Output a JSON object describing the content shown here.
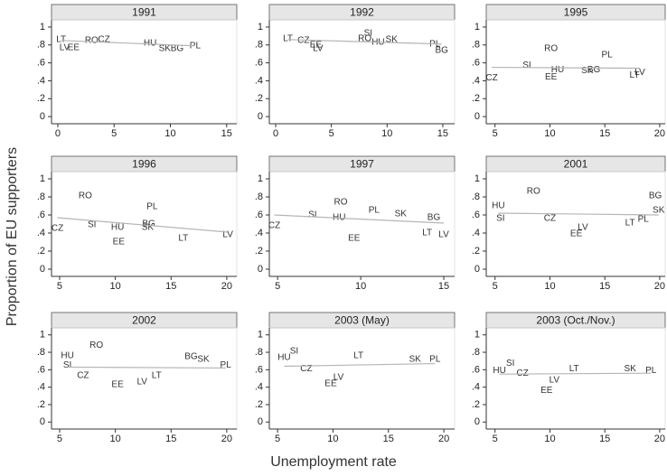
{
  "y_label": "Proportion of EU supporters",
  "x_label": "Unemployment rate",
  "chart_data": [
    {
      "type": "scatter",
      "title": "1991",
      "xlim": [
        -0.56,
        15.9
      ],
      "xticks": [
        0,
        5,
        10,
        15
      ],
      "ylim": [
        -0.08,
        1.08
      ],
      "yticks": [
        0,
        {
          "value": 0.2,
          "label": ".2"
        },
        {
          "value": 0.4,
          "label": ".4"
        },
        {
          "value": 0.6,
          "label": ".6"
        },
        {
          "value": 0.8,
          "label": ".8"
        },
        1
      ],
      "labels": [
        "LT",
        "LV",
        "EE",
        "RO",
        "CZ",
        "HU",
        "SK",
        "BG",
        "PL"
      ],
      "x": [
        0.3,
        0.6,
        1.4,
        3.0,
        4.1,
        8.2,
        9.5,
        10.6,
        12.2
      ],
      "values": [
        0.86,
        0.77,
        0.77,
        0.85,
        0.86,
        0.82,
        0.76,
        0.76,
        0.79
      ],
      "fit": {
        "x": [
          0.3,
          12.2
        ],
        "values": [
          0.85,
          0.79
        ]
      }
    },
    {
      "type": "scatter",
      "title": "1992",
      "xlim": [
        -0.57,
        16.06
      ],
      "xticks": [
        0,
        5,
        10,
        15
      ],
      "ylim": [
        -0.08,
        1.08
      ],
      "yticks": [
        0,
        {
          "value": 0.2,
          "label": ".2"
        },
        {
          "value": 0.4,
          "label": ".4"
        },
        {
          "value": 0.6,
          "label": ".6"
        },
        {
          "value": 0.8,
          "label": ".8"
        },
        1
      ],
      "labels": [
        "LT",
        "CZ",
        "EE",
        "LV",
        "SI",
        "RO",
        "HU",
        "SK",
        "PL",
        "BG"
      ],
      "x": [
        1.1,
        2.5,
        3.6,
        3.8,
        8.3,
        8.0,
        9.2,
        10.4,
        14.3,
        14.9
      ],
      "values": [
        0.87,
        0.85,
        0.8,
        0.76,
        0.93,
        0.87,
        0.83,
        0.86,
        0.81,
        0.74
      ],
      "fit": {
        "x": [
          1.1,
          14.9
        ],
        "values": [
          0.86,
          0.81
        ]
      }
    },
    {
      "type": "scatter",
      "title": "1995",
      "xlim": [
        4.2,
        20.5
      ],
      "xticks": [
        5,
        10,
        15,
        20
      ],
      "ylim": [
        -0.08,
        1.08
      ],
      "yticks": [
        0,
        {
          "value": 0.2,
          "label": ".2"
        },
        {
          "value": 0.4,
          "label": ".4"
        },
        {
          "value": 0.6,
          "label": ".6"
        },
        {
          "value": 0.8,
          "label": ".8"
        },
        1
      ],
      "labels": [
        "CZ",
        "SI",
        "RO",
        "HU",
        "EE",
        "SK",
        "BG",
        "PL",
        "LT",
        "LV"
      ],
      "x": [
        4.7,
        7.9,
        10.1,
        10.7,
        10.1,
        13.4,
        14.0,
        15.2,
        17.7,
        18.2
      ],
      "values": [
        0.43,
        0.57,
        0.76,
        0.52,
        0.44,
        0.51,
        0.52,
        0.69,
        0.46,
        0.49
      ],
      "fit": {
        "x": [
          4.7,
          18.2
        ],
        "values": [
          0.55,
          0.54
        ]
      }
    },
    {
      "type": "scatter",
      "title": "1996",
      "xlim": [
        4.27,
        20.9
      ],
      "xticks": [
        5,
        10,
        15,
        20
      ],
      "ylim": [
        -0.08,
        1.08
      ],
      "yticks": [
        0,
        {
          "value": 0.2,
          "label": ".2"
        },
        {
          "value": 0.4,
          "label": ".4"
        },
        {
          "value": 0.6,
          "label": ".6"
        },
        {
          "value": 0.8,
          "label": ".8"
        },
        1
      ],
      "labels": [
        "CZ",
        "RO",
        "SI",
        "HU",
        "EE",
        "PL",
        "BG",
        "SK",
        "LT",
        "LV"
      ],
      "x": [
        4.8,
        7.3,
        7.9,
        10.2,
        10.3,
        13.3,
        13.0,
        12.9,
        16.1,
        20.1
      ],
      "values": [
        0.45,
        0.81,
        0.49,
        0.46,
        0.3,
        0.69,
        0.5,
        0.46,
        0.34,
        0.38
      ],
      "fit": {
        "x": [
          4.8,
          20.1
        ],
        "values": [
          0.57,
          0.41
        ]
      }
    },
    {
      "type": "scatter",
      "title": "1997",
      "xlim": [
        4.5,
        15.65
      ],
      "xticks": [
        5,
        10,
        15
      ],
      "ylim": [
        -0.08,
        1.08
      ],
      "yticks": [
        0,
        {
          "value": 0.2,
          "label": ".2"
        },
        {
          "value": 0.4,
          "label": ".4"
        },
        {
          "value": 0.6,
          "label": ".6"
        },
        {
          "value": 0.8,
          "label": ".8"
        },
        1
      ],
      "labels": [
        "CZ",
        "SI",
        "RO",
        "HU",
        "EE",
        "PL",
        "SK",
        "BG",
        "LT",
        "LV"
      ],
      "x": [
        4.8,
        7.1,
        8.8,
        8.7,
        9.6,
        10.8,
        12.4,
        14.4,
        14.0,
        15.0
      ],
      "values": [
        0.48,
        0.6,
        0.74,
        0.57,
        0.34,
        0.65,
        0.61,
        0.57,
        0.4,
        0.38
      ],
      "fit": {
        "x": [
          4.8,
          15.0
        ],
        "values": [
          0.6,
          0.51
        ]
      }
    },
    {
      "type": "scatter",
      "title": "2001",
      "xlim": [
        4.2,
        20.5
      ],
      "xticks": [
        5,
        10,
        15,
        20
      ],
      "ylim": [
        -0.08,
        1.08
      ],
      "yticks": [
        0,
        {
          "value": 0.2,
          "label": ".2"
        },
        {
          "value": 0.4,
          "label": ".4"
        },
        {
          "value": 0.6,
          "label": ".6"
        },
        {
          "value": 0.8,
          "label": ".8"
        },
        1
      ],
      "labels": [
        "HU",
        "SI",
        "RO",
        "CZ",
        "EE",
        "LV",
        "LT",
        "PL",
        "BG",
        "SK"
      ],
      "x": [
        5.3,
        5.5,
        8.5,
        10.0,
        12.4,
        13.0,
        17.3,
        18.5,
        19.6,
        19.9
      ],
      "values": [
        0.7,
        0.56,
        0.86,
        0.56,
        0.39,
        0.46,
        0.51,
        0.55,
        0.81,
        0.65
      ],
      "fit": {
        "x": [
          5.3,
          19.9
        ],
        "values": [
          0.62,
          0.6
        ]
      }
    },
    {
      "type": "scatter",
      "title": "2002",
      "xlim": [
        4.27,
        20.9
      ],
      "xticks": [
        5,
        10,
        15,
        20
      ],
      "ylim": [
        -0.08,
        1.08
      ],
      "yticks": [
        0,
        {
          "value": 0.2,
          "label": ".2"
        },
        {
          "value": 0.4,
          "label": ".4"
        },
        {
          "value": 0.6,
          "label": ".6"
        },
        {
          "value": 0.8,
          "label": ".8"
        },
        1
      ],
      "labels": [
        "HU",
        "SI",
        "RO",
        "CZ",
        "EE",
        "LV",
        "LT",
        "BG",
        "SK",
        "PL"
      ],
      "x": [
        5.7,
        5.7,
        8.3,
        7.1,
        10.2,
        12.4,
        13.7,
        16.8,
        17.9,
        19.9
      ],
      "values": [
        0.76,
        0.65,
        0.88,
        0.53,
        0.43,
        0.46,
        0.53,
        0.75,
        0.72,
        0.65
      ],
      "fit": {
        "x": [
          5.7,
          19.9
        ],
        "values": [
          0.63,
          0.62
        ]
      }
    },
    {
      "type": "scatter",
      "title": "2003 (May)",
      "xlim": [
        4.26,
        20.97
      ],
      "xticks": [
        5,
        10,
        15,
        20
      ],
      "ylim": [
        -0.08,
        1.08
      ],
      "yticks": [
        0,
        {
          "value": 0.2,
          "label": ".2"
        },
        {
          "value": 0.4,
          "label": ".4"
        },
        {
          "value": 0.6,
          "label": ".6"
        },
        {
          "value": 0.8,
          "label": ".8"
        },
        1
      ],
      "labels": [
        "HU",
        "SI",
        "CZ",
        "EE",
        "LV",
        "LT",
        "SK",
        "PL"
      ],
      "x": [
        5.6,
        6.5,
        7.6,
        9.8,
        10.5,
        12.3,
        17.4,
        19.2
      ],
      "values": [
        0.74,
        0.81,
        0.61,
        0.44,
        0.51,
        0.76,
        0.72,
        0.72
      ],
      "fit": {
        "x": [
          5.6,
          19.2
        ],
        "values": [
          0.64,
          0.67
        ]
      }
    },
    {
      "type": "scatter",
      "title": "2003 (Oct./Nov.)",
      "xlim": [
        4.2,
        20.5
      ],
      "xticks": [
        5,
        10,
        15,
        20
      ],
      "ylim": [
        -0.08,
        1.08
      ],
      "yticks": [
        0,
        {
          "value": 0.2,
          "label": ".2"
        },
        {
          "value": 0.4,
          "label": ".4"
        },
        {
          "value": 0.6,
          "label": ".6"
        },
        {
          "value": 0.8,
          "label": ".8"
        },
        1
      ],
      "labels": [
        "HU",
        "SI",
        "CZ",
        "EE",
        "LV",
        "LT",
        "SK",
        "PL"
      ],
      "x": [
        5.4,
        6.4,
        7.5,
        9.7,
        10.4,
        12.2,
        17.3,
        19.2
      ],
      "values": [
        0.59,
        0.67,
        0.56,
        0.36,
        0.48,
        0.61,
        0.61,
        0.59
      ],
      "fit": {
        "x": [
          5.4,
          19.2
        ],
        "values": [
          0.55,
          0.56
        ]
      }
    }
  ]
}
